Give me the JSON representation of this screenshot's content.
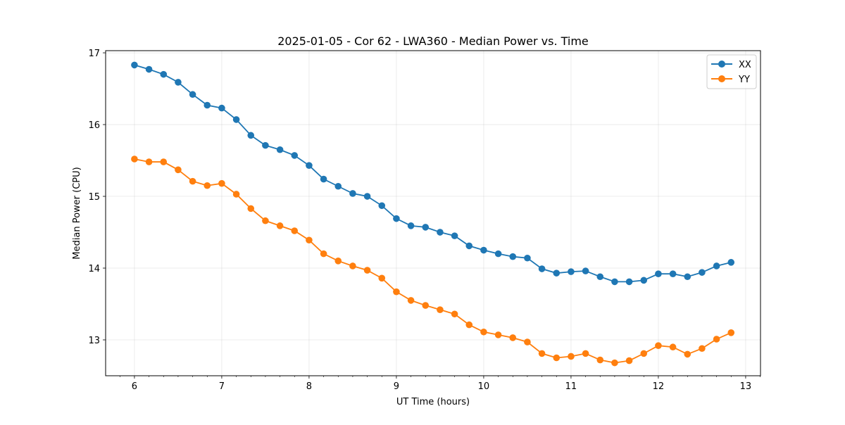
{
  "chart_data": {
    "type": "line",
    "title": "2025-01-05 - Cor 62 - LWA360 - Median Power vs. Time",
    "xlabel": "UT Time (hours)",
    "ylabel": "Median Power (CPU)",
    "xlim": [
      5.67,
      13.17
    ],
    "ylim": [
      12.5,
      17.03
    ],
    "xticks": [
      6,
      7,
      8,
      9,
      10,
      11,
      12,
      13
    ],
    "yticks": [
      13,
      14,
      15,
      16,
      17
    ],
    "grid": true,
    "legend_position": "top-right",
    "x": [
      6.0,
      6.1667,
      6.3333,
      6.5,
      6.6667,
      6.8333,
      7.0,
      7.1667,
      7.3333,
      7.5,
      7.6667,
      7.8333,
      8.0,
      8.1667,
      8.3333,
      8.5,
      8.6667,
      8.8333,
      9.0,
      9.1667,
      9.3333,
      9.5,
      9.6667,
      9.8333,
      10.0,
      10.1667,
      10.3333,
      10.5,
      10.6667,
      10.8333,
      11.0,
      11.1667,
      11.3333,
      11.5,
      11.6667,
      11.8333,
      12.0,
      12.1667,
      12.3333,
      12.5,
      12.6667,
      12.8333
    ],
    "series": [
      {
        "name": "XX",
        "color": "#1f77b4",
        "values": [
          16.83,
          16.77,
          16.7,
          16.59,
          16.42,
          16.27,
          16.23,
          16.07,
          15.85,
          15.71,
          15.65,
          15.57,
          15.43,
          15.24,
          15.14,
          15.04,
          15.0,
          14.87,
          14.69,
          14.59,
          14.57,
          14.5,
          14.45,
          14.31,
          14.25,
          14.2,
          14.16,
          14.14,
          13.99,
          13.93,
          13.95,
          13.96,
          13.88,
          13.81,
          13.81,
          13.83,
          13.92,
          13.92,
          13.88,
          13.94,
          14.03,
          14.08
        ]
      },
      {
        "name": "YY",
        "color": "#ff7f0e",
        "values": [
          15.52,
          15.48,
          15.48,
          15.37,
          15.21,
          15.15,
          15.18,
          15.03,
          14.83,
          14.66,
          14.59,
          14.52,
          14.39,
          14.2,
          14.1,
          14.03,
          13.97,
          13.86,
          13.67,
          13.55,
          13.48,
          13.42,
          13.36,
          13.21,
          13.11,
          13.07,
          13.03,
          12.97,
          12.81,
          12.75,
          12.77,
          12.81,
          12.72,
          12.68,
          12.71,
          12.81,
          12.92,
          12.9,
          12.8,
          12.88,
          13.01,
          13.1
        ]
      }
    ]
  }
}
